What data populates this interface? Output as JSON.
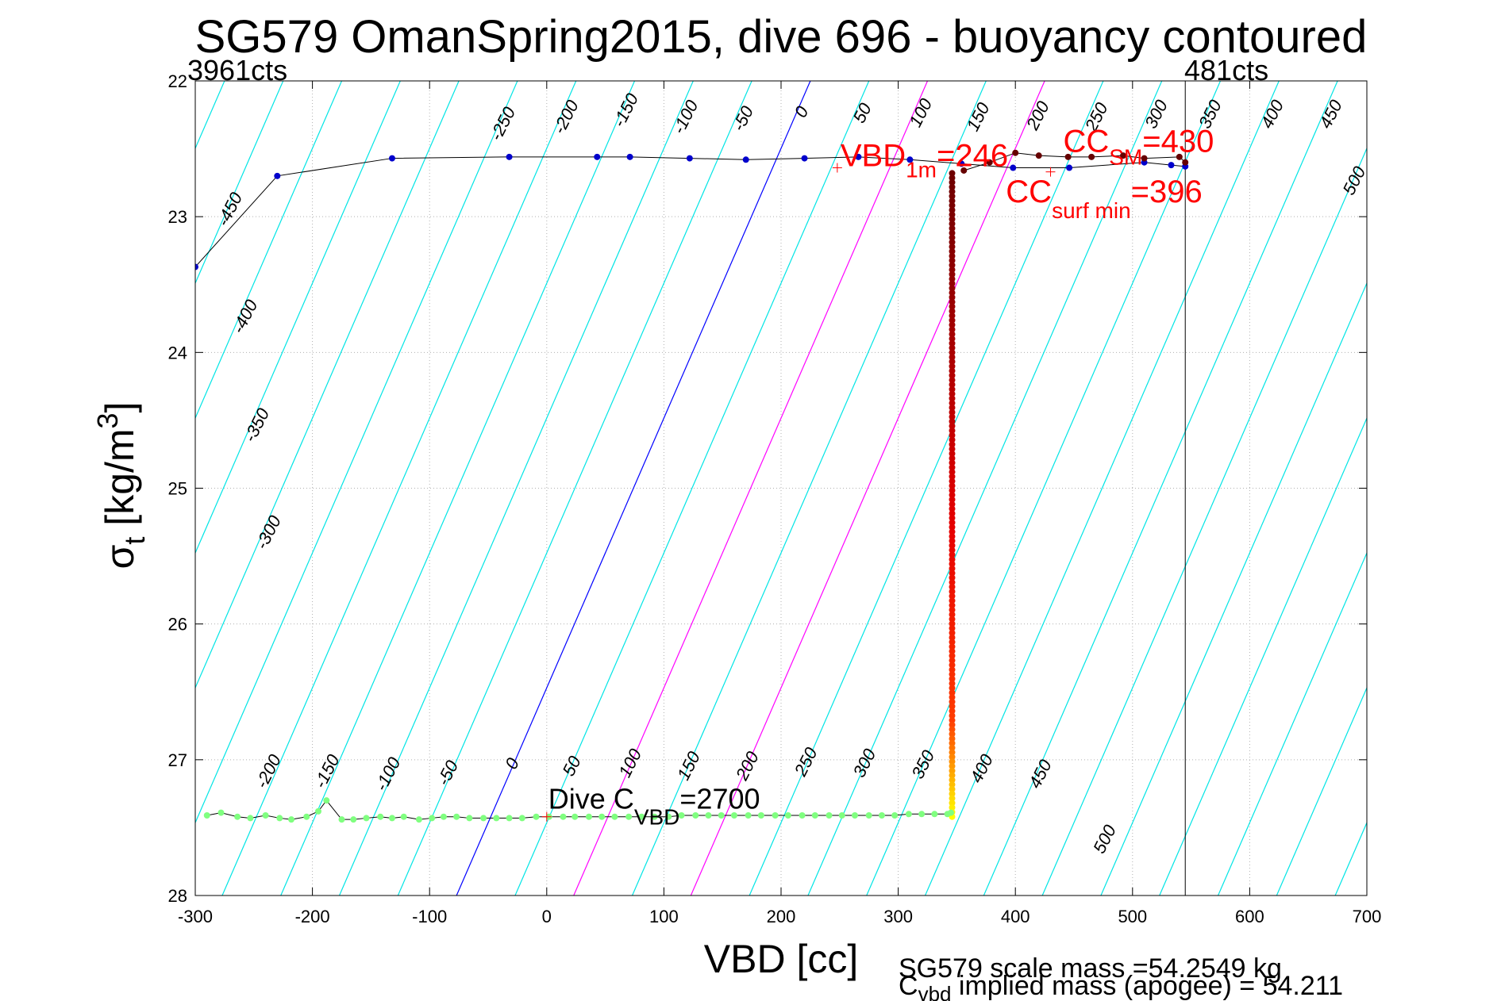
{
  "chart_data": {
    "type": "scatter",
    "title": "SG579 OmanSpring2015, dive 696 - buoyancy contoured",
    "xlabel": "VBD [cc]",
    "ylabel_main": "σ",
    "ylabel_sub": "t",
    "ylabel_unit": " [kg/m",
    "ylabel_sup": "3",
    "ylabel_close": "]",
    "xlim": [
      -300,
      700
    ],
    "ylim": [
      22,
      28
    ],
    "y_reversed": true,
    "grid": true,
    "xticks": [
      -300,
      -200,
      -100,
      0,
      100,
      200,
      300,
      400,
      500,
      600,
      700
    ],
    "yticks": [
      22,
      23,
      24,
      25,
      26,
      27,
      28
    ],
    "colors": {
      "contour": "#00e5e5",
      "zero_line": "#0000ff",
      "magenta": "#ff00ff",
      "dive_points": "#0000cc",
      "climb_points": "#80ff80",
      "annotation": "#ff0000"
    },
    "top_left_label": "3961cts",
    "top_right_label": "481cts",
    "vertical_line_x": 545,
    "contour_slope_cc_per_sigma": 150,
    "contour_values": [
      -450,
      -400,
      -350,
      -300,
      -250,
      -200,
      -150,
      -100,
      -50,
      0,
      50,
      100,
      150,
      200,
      250,
      300,
      350,
      400,
      450,
      500
    ],
    "contour_labels_top": [
      {
        "text": "-450",
        "x": -273,
        "y": 23.08
      },
      {
        "text": "-400",
        "x": -260,
        "y": 23.87
      },
      {
        "text": "-350",
        "x": -250,
        "y": 24.67
      },
      {
        "text": "-300",
        "x": -240,
        "y": 25.46
      },
      {
        "text": "-250",
        "x": -40,
        "y": 22.45
      },
      {
        "text": "-200",
        "x": 14,
        "y": 22.4
      },
      {
        "text": "-150",
        "x": 65,
        "y": 22.35
      },
      {
        "text": "-100",
        "x": 116,
        "y": 22.4
      },
      {
        "text": "-50",
        "x": 167,
        "y": 22.38
      },
      {
        "text": "0",
        "x": 220,
        "y": 22.28
      },
      {
        "text": "50",
        "x": 270,
        "y": 22.32
      },
      {
        "text": "100",
        "x": 318,
        "y": 22.35
      },
      {
        "text": "150",
        "x": 367,
        "y": 22.38
      },
      {
        "text": "200",
        "x": 418,
        "y": 22.37
      },
      {
        "text": "250",
        "x": 468,
        "y": 22.38
      },
      {
        "text": "300",
        "x": 519,
        "y": 22.36
      },
      {
        "text": "350",
        "x": 565,
        "y": 22.36
      },
      {
        "text": "400",
        "x": 618,
        "y": 22.36
      },
      {
        "text": "450",
        "x": 668,
        "y": 22.36
      },
      {
        "text": "500",
        "x": 688,
        "y": 22.85
      }
    ],
    "contour_labels_bottom": [
      {
        "text": "-200",
        "x": -240,
        "y": 27.22
      },
      {
        "text": "-150",
        "x": -190,
        "y": 27.22
      },
      {
        "text": "-100",
        "x": -138,
        "y": 27.24
      },
      {
        "text": "-50",
        "x": -85,
        "y": 27.2
      },
      {
        "text": "0",
        "x": -27,
        "y": 27.08
      },
      {
        "text": "50",
        "x": 22,
        "y": 27.13
      },
      {
        "text": "100",
        "x": 70,
        "y": 27.14
      },
      {
        "text": "150",
        "x": 120,
        "y": 27.16
      },
      {
        "text": "200",
        "x": 170,
        "y": 27.16
      },
      {
        "text": "250",
        "x": 220,
        "y": 27.13
      },
      {
        "text": "300",
        "x": 270,
        "y": 27.14
      },
      {
        "text": "350",
        "x": 320,
        "y": 27.15
      },
      {
        "text": "400",
        "x": 370,
        "y": 27.18
      },
      {
        "text": "450",
        "x": 420,
        "y": 27.22
      },
      {
        "text": "500",
        "x": 475,
        "y": 27.7
      }
    ],
    "dive_series": {
      "name": "",
      "x": [
        -300,
        -230,
        -132,
        -32,
        43,
        71,
        122,
        170,
        220,
        266,
        310,
        354,
        398,
        446,
        510,
        533,
        545
      ],
      "y": [
        23.37,
        22.7,
        22.57,
        22.56,
        22.56,
        22.56,
        22.57,
        22.58,
        22.57,
        22.56,
        22.58,
        22.61,
        22.64,
        22.64,
        22.6,
        22.62,
        22.63
      ]
    },
    "surface_series": {
      "x": [
        356,
        378,
        400,
        420,
        445,
        465,
        492,
        510,
        540,
        545
      ],
      "y": [
        22.66,
        22.6,
        22.53,
        22.55,
        22.56,
        22.56,
        22.55,
        22.57,
        22.56,
        22.6
      ]
    },
    "climb_series": {
      "name": "",
      "x": [
        -290,
        -278,
        -264,
        -253,
        -240,
        -228,
        -218,
        -205,
        -195,
        -188,
        -175,
        -165,
        -154,
        -142,
        -132,
        -122,
        -109,
        -98,
        -88,
        -77,
        -66,
        -54,
        -43,
        -32,
        -21,
        -9,
        2,
        14,
        24,
        36,
        47,
        58,
        70,
        81,
        92,
        104,
        115,
        127,
        138,
        149,
        160,
        172,
        183,
        195,
        206,
        218,
        229,
        241,
        252,
        263,
        275,
        286,
        297,
        309,
        320,
        331,
        342,
        345
      ],
      "y": [
        27.41,
        27.39,
        27.42,
        27.43,
        27.41,
        27.43,
        27.44,
        27.42,
        27.38,
        27.3,
        27.44,
        27.44,
        27.43,
        27.42,
        27.43,
        27.42,
        27.44,
        27.43,
        27.42,
        27.42,
        27.43,
        27.43,
        27.43,
        27.43,
        27.43,
        27.42,
        27.42,
        27.42,
        27.42,
        27.42,
        27.42,
        27.42,
        27.42,
        27.42,
        27.42,
        27.42,
        27.41,
        27.41,
        27.41,
        27.41,
        27.41,
        27.41,
        27.41,
        27.41,
        27.41,
        27.41,
        27.41,
        27.41,
        27.41,
        27.41,
        27.41,
        27.41,
        27.41,
        27.4,
        27.4,
        27.4,
        27.4,
        27.39
      ]
    },
    "profile_x": 346,
    "profile_y_range": [
      22.68,
      27.42
    ],
    "annotations": {
      "vbd1m": {
        "main": "VBD",
        "sub": "1m",
        "rest": "=246",
        "x": 248,
        "y": 22.64
      },
      "cc_sm": {
        "main": "CC",
        "sub": "SM",
        "rest": "=430",
        "x": 430,
        "y": 22.58
      },
      "cc_surf": {
        "main": "CC",
        "sub": "surf min",
        "rest": "=396",
        "x": 396,
        "y": 22.72
      },
      "dive_cvbd": {
        "main": "Dive C",
        "sub": "VBD",
        "rest": "=2700",
        "x": 0,
        "y": 27.42
      }
    },
    "footer_line1": "SG579 scale mass =54.2549 kg",
    "footer_line2_main": "C",
    "footer_line2_sub": "vbd",
    "footer_line2_rest": " implied mass (apogee) = 54.211"
  }
}
